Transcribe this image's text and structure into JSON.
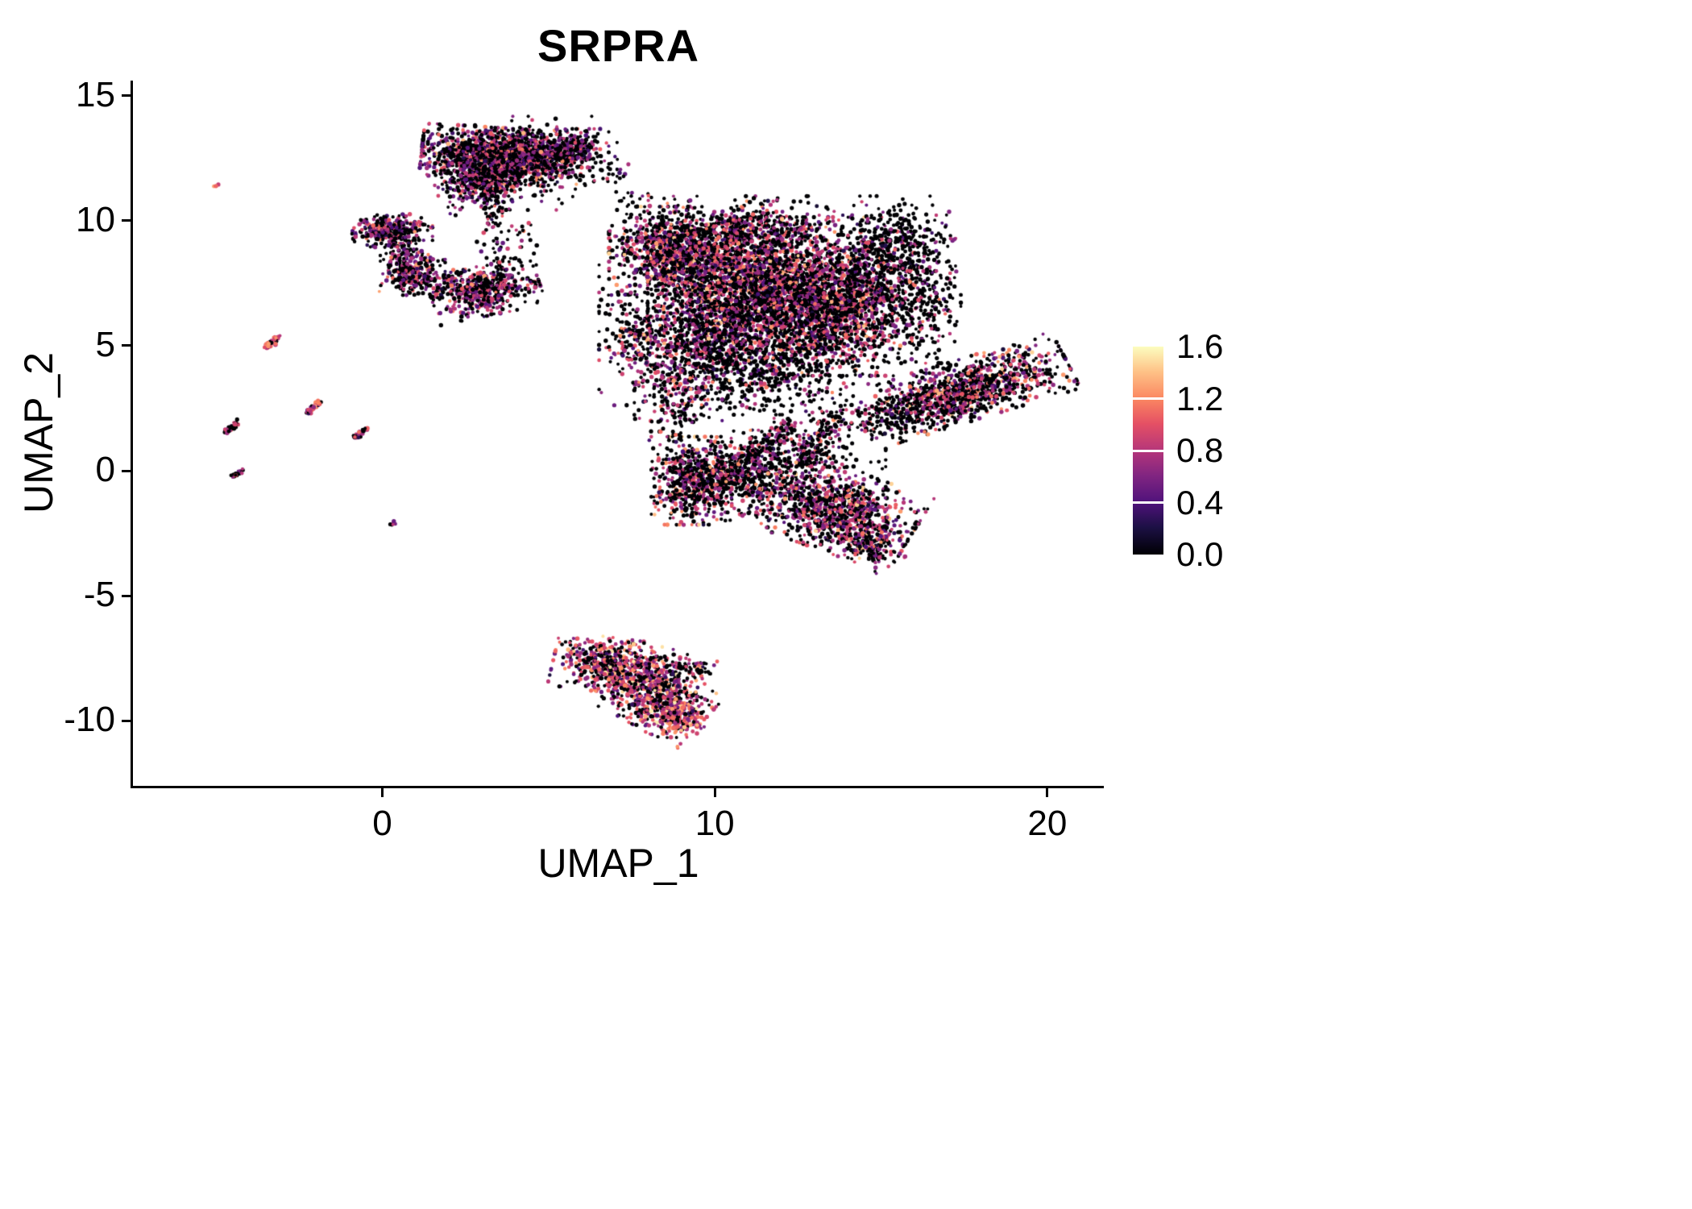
{
  "chart_data": {
    "type": "scatter",
    "title": "SRPRA",
    "xlabel": "UMAP_1",
    "ylabel": "UMAP_2",
    "xlim": [
      -7.5,
      21.7
    ],
    "ylim": [
      -12.6,
      15.6
    ],
    "xticks": [
      0,
      10,
      20
    ],
    "yticks": [
      15,
      10,
      5,
      0,
      -5,
      -10
    ],
    "grid": false,
    "legend_position": "right",
    "colorbar": {
      "ticks": [
        "1.6",
        "1.2",
        "0.8",
        "0.4",
        "0.0"
      ],
      "vmin": 0.0,
      "vmax": 1.6,
      "stops": [
        [
          0.0,
          0,
          0,
          4
        ],
        [
          0.13,
          28,
          16,
          68
        ],
        [
          0.25,
          79,
          18,
          123
        ],
        [
          0.38,
          129,
          37,
          129
        ],
        [
          0.5,
          181,
          54,
          122
        ],
        [
          0.63,
          229,
          80,
          100
        ],
        [
          0.75,
          251,
          135,
          97
        ],
        [
          0.88,
          254,
          194,
          135
        ],
        [
          1.0,
          252,
          253,
          191
        ]
      ]
    },
    "point_seed": 42,
    "clusters": [
      {
        "name": "top-main",
        "cx": 3.6,
        "cy": 12.6,
        "sx": 1.1,
        "sy": 0.5,
        "rot": -5,
        "n": 1500,
        "zero": 0.45,
        "vmean": 0.75,
        "vsd": 0.28
      },
      {
        "name": "top-lower-lobe",
        "cx": 3.1,
        "cy": 11.6,
        "sx": 0.7,
        "sy": 0.45,
        "rot": 20,
        "n": 350,
        "zero": 0.5,
        "vmean": 0.7,
        "vsd": 0.25
      },
      {
        "name": "top-right-lobe",
        "cx": 5.6,
        "cy": 12.9,
        "sx": 0.55,
        "sy": 0.35,
        "rot": 0,
        "n": 250,
        "zero": 0.55,
        "vmean": 0.7,
        "vsd": 0.25
      },
      {
        "name": "top-halo",
        "cx": 4.2,
        "cy": 12.3,
        "sx": 1.3,
        "sy": 0.85,
        "rot": 0,
        "n": 220,
        "zero": 0.7,
        "vmean": 0.7,
        "vsd": 0.3
      },
      {
        "name": "top-stem",
        "cx": 3.4,
        "cy": 10.5,
        "sx": 0.25,
        "sy": 0.55,
        "rot": 0,
        "n": 60,
        "zero": 0.6,
        "vmean": 0.7,
        "vsd": 0.25
      },
      {
        "name": "top-right-dots",
        "cx": 6.9,
        "cy": 12.0,
        "sx": 0.3,
        "sy": 0.3,
        "rot": 0,
        "n": 25,
        "zero": 0.75,
        "vmean": 0.7,
        "vsd": 0.25
      },
      {
        "name": "upper-mid-dots",
        "cx": 7.8,
        "cy": 10.7,
        "sx": 0.4,
        "sy": 0.3,
        "rot": 0,
        "n": 25,
        "zero": 0.8,
        "vmean": 0.7,
        "vsd": 0.25
      },
      {
        "name": "left-island-a",
        "cx": 0.3,
        "cy": 9.6,
        "sx": 0.55,
        "sy": 0.3,
        "rot": 0,
        "n": 320,
        "zero": 0.5,
        "vmean": 0.7,
        "vsd": 0.25
      },
      {
        "name": "left-island-b",
        "cx": 0.9,
        "cy": 7.9,
        "sx": 0.45,
        "sy": 0.4,
        "rot": 0,
        "n": 280,
        "zero": 0.45,
        "vmean": 0.75,
        "vsd": 0.25
      },
      {
        "name": "island-bridge",
        "cx": 0.6,
        "cy": 8.8,
        "sx": 0.3,
        "sy": 0.3,
        "rot": 0,
        "n": 60,
        "zero": 0.6,
        "vmean": 0.7,
        "vsd": 0.25
      },
      {
        "name": "mid-island",
        "cx": 3.1,
        "cy": 7.2,
        "sx": 0.75,
        "sy": 0.45,
        "rot": 15,
        "n": 500,
        "zero": 0.45,
        "vmean": 0.75,
        "vsd": 0.25
      },
      {
        "name": "mid-island-west",
        "cx": 2.0,
        "cy": 7.6,
        "sx": 0.4,
        "sy": 0.25,
        "rot": 0,
        "n": 50,
        "zero": 0.6,
        "vmean": 0.7,
        "vsd": 0.25
      },
      {
        "name": "mid-island-north",
        "cx": 3.6,
        "cy": 9.0,
        "sx": 0.5,
        "sy": 0.8,
        "rot": 0,
        "n": 70,
        "zero": 0.65,
        "vmean": 0.7,
        "vsd": 0.25
      },
      {
        "name": "main-left-lobe",
        "cx": 8.8,
        "cy": 8.8,
        "sx": 0.9,
        "sy": 0.8,
        "rot": 0,
        "n": 900,
        "zero": 0.5,
        "vmean": 0.8,
        "vsd": 0.3
      },
      {
        "name": "main-core",
        "cx": 11.5,
        "cy": 7.5,
        "sx": 1.6,
        "sy": 1.2,
        "rot": 0,
        "n": 2400,
        "zero": 0.5,
        "vmean": 0.8,
        "vsd": 0.3
      },
      {
        "name": "main-southeast",
        "cx": 13.5,
        "cy": 6.0,
        "sx": 1.1,
        "sy": 1.0,
        "rot": 0,
        "n": 1000,
        "zero": 0.5,
        "vmean": 0.8,
        "vsd": 0.3
      },
      {
        "name": "main-southwest",
        "cx": 9.8,
        "cy": 5.5,
        "sx": 1.0,
        "sy": 1.0,
        "rot": 0,
        "n": 700,
        "zero": 0.55,
        "vmean": 0.75,
        "vsd": 0.3
      },
      {
        "name": "main-east-arm",
        "cx": 14.9,
        "cy": 7.8,
        "sx": 0.8,
        "sy": 1.1,
        "rot": 0,
        "n": 450,
        "zero": 0.6,
        "vmean": 0.7,
        "vsd": 0.3
      },
      {
        "name": "main-topright-sparse",
        "cx": 15.7,
        "cy": 9.3,
        "sx": 0.7,
        "sy": 0.6,
        "rot": 0,
        "n": 220,
        "zero": 0.85,
        "vmean": 0.6,
        "vsd": 0.2
      },
      {
        "name": "main-right-sparse",
        "cx": 16.3,
        "cy": 6.5,
        "sx": 0.5,
        "sy": 1.0,
        "rot": 0,
        "n": 200,
        "zero": 0.8,
        "vmean": 0.65,
        "vsd": 0.25
      },
      {
        "name": "main-south-sparse",
        "cx": 11.3,
        "cy": 4.0,
        "sx": 1.3,
        "sy": 0.8,
        "rot": 0,
        "n": 450,
        "zero": 0.75,
        "vmean": 0.7,
        "vsd": 0.25
      },
      {
        "name": "main-west-arm",
        "cx": 8.9,
        "cy": 3.2,
        "sx": 0.6,
        "sy": 0.9,
        "rot": 0,
        "n": 250,
        "zero": 0.6,
        "vmean": 0.75,
        "vsd": 0.25
      },
      {
        "name": "main-halo",
        "cx": 11.8,
        "cy": 6.8,
        "sx": 2.4,
        "sy": 1.9,
        "rot": 0,
        "n": 800,
        "zero": 0.7,
        "vmean": 0.75,
        "vsd": 0.3
      },
      {
        "name": "main-top-bump",
        "cx": 11.2,
        "cy": 9.8,
        "sx": 1.0,
        "sy": 0.5,
        "rot": 0,
        "n": 300,
        "zero": 0.55,
        "vmean": 0.75,
        "vsd": 0.3
      },
      {
        "name": "main-west-edge",
        "cx": 7.6,
        "cy": 5.3,
        "sx": 0.4,
        "sy": 0.8,
        "rot": 0,
        "n": 150,
        "zero": 0.5,
        "vmean": 0.8,
        "vsd": 0.3
      },
      {
        "name": "east-wing",
        "cx": 17.5,
        "cy": 3.2,
        "sx": 1.5,
        "sy": 0.55,
        "rot": 22,
        "n": 1100,
        "zero": 0.55,
        "vmean": 0.8,
        "vsd": 0.3
      },
      {
        "name": "east-wing-link",
        "cx": 15.5,
        "cy": 2.2,
        "sx": 0.8,
        "sy": 0.4,
        "rot": 20,
        "n": 120,
        "zero": 0.7,
        "vmean": 0.7,
        "vsd": 0.25
      },
      {
        "name": "lower-mid-west",
        "cx": 9.3,
        "cy": -0.4,
        "sx": 0.55,
        "sy": 0.8,
        "rot": 0,
        "n": 550,
        "zero": 0.5,
        "vmean": 0.8,
        "vsd": 0.3
      },
      {
        "name": "lower-mid-east",
        "cx": 10.5,
        "cy": -0.2,
        "sx": 0.7,
        "sy": 0.7,
        "rot": 0,
        "n": 350,
        "zero": 0.65,
        "vmean": 0.75,
        "vsd": 0.28
      },
      {
        "name": "lower-diag-a",
        "line": [
          10.3,
          -0.3,
          12.3,
          1.8
        ],
        "w": 0.25,
        "n": 200,
        "zero": 0.6,
        "vmean": 0.75,
        "vsd": 0.25
      },
      {
        "name": "lower-diag-b",
        "line": [
          13.6,
          2.2,
          12.6,
          0.2
        ],
        "w": 0.3,
        "n": 180,
        "zero": 0.6,
        "vmean": 0.75,
        "vsd": 0.25
      },
      {
        "name": "south-cluster",
        "cx": 13.5,
        "cy": -1.5,
        "sx": 1.2,
        "sy": 0.75,
        "rot": -25,
        "n": 1000,
        "zero": 0.45,
        "vmean": 0.8,
        "vsd": 0.3
      },
      {
        "name": "south-tail",
        "cx": 14.7,
        "cy": -3.0,
        "sx": 0.5,
        "sy": 0.4,
        "rot": -30,
        "n": 150,
        "zero": 0.5,
        "vmean": 0.8,
        "vsd": 0.28
      },
      {
        "name": "south-sparse",
        "cx": 12.5,
        "cy": 0.3,
        "sx": 1.2,
        "sy": 0.6,
        "rot": 0,
        "n": 150,
        "zero": 0.8,
        "vmean": 0.7,
        "vsd": 0.25
      },
      {
        "name": "bottom-west",
        "cx": 7.0,
        "cy": -7.8,
        "sx": 0.85,
        "sy": 0.5,
        "rot": -10,
        "n": 550,
        "zero": 0.35,
        "vmean": 0.85,
        "vsd": 0.3
      },
      {
        "name": "bottom-mid",
        "cx": 8.2,
        "cy": -9.0,
        "sx": 0.8,
        "sy": 0.6,
        "rot": -35,
        "n": 550,
        "zero": 0.35,
        "vmean": 0.9,
        "vsd": 0.3
      },
      {
        "name": "bottom-tip",
        "cx": 8.8,
        "cy": -9.9,
        "sx": 0.4,
        "sy": 0.35,
        "rot": 0,
        "n": 200,
        "zero": 0.3,
        "vmean": 0.95,
        "vsd": 0.3
      },
      {
        "name": "bottom-east-dots",
        "cx": 9.3,
        "cy": -7.9,
        "sx": 0.35,
        "sy": 0.25,
        "rot": 0,
        "n": 60,
        "zero": 0.7,
        "vmean": 0.8,
        "vsd": 0.25
      },
      {
        "name": "streak-1",
        "line": [
          -3.55,
          4.85,
          -3.15,
          5.35
        ],
        "w": 0.05,
        "n": 45,
        "zero": 0.15,
        "vmean": 1.0,
        "vsd": 0.2
      },
      {
        "name": "streak-2",
        "line": [
          -2.25,
          2.3,
          -1.9,
          2.75
        ],
        "w": 0.05,
        "n": 40,
        "zero": 0.3,
        "vmean": 0.85,
        "vsd": 0.25
      },
      {
        "name": "streak-3",
        "line": [
          -4.7,
          1.55,
          -4.35,
          1.95
        ],
        "w": 0.05,
        "n": 35,
        "zero": 0.4,
        "vmean": 0.8,
        "vsd": 0.25
      },
      {
        "name": "streak-4",
        "line": [
          -0.85,
          1.3,
          -0.5,
          1.7
        ],
        "w": 0.05,
        "n": 35,
        "zero": 0.45,
        "vmean": 0.9,
        "vsd": 0.3
      },
      {
        "name": "streak-5",
        "line": [
          -4.5,
          -0.25,
          -4.2,
          0.0
        ],
        "w": 0.04,
        "n": 25,
        "zero": 0.8,
        "vmean": 0.6,
        "vsd": 0.2
      },
      {
        "name": "dot-pair",
        "line": [
          0.3,
          -2.15,
          0.4,
          -2.05
        ],
        "w": 0.04,
        "n": 6,
        "zero": 0.5,
        "vmean": 0.7,
        "vsd": 0.2
      },
      {
        "name": "orange-dot",
        "line": [
          -5.05,
          11.35,
          -4.95,
          11.45
        ],
        "w": 0.03,
        "n": 4,
        "zero": 0.1,
        "vmean": 1.1,
        "vsd": 0.15
      }
    ]
  }
}
